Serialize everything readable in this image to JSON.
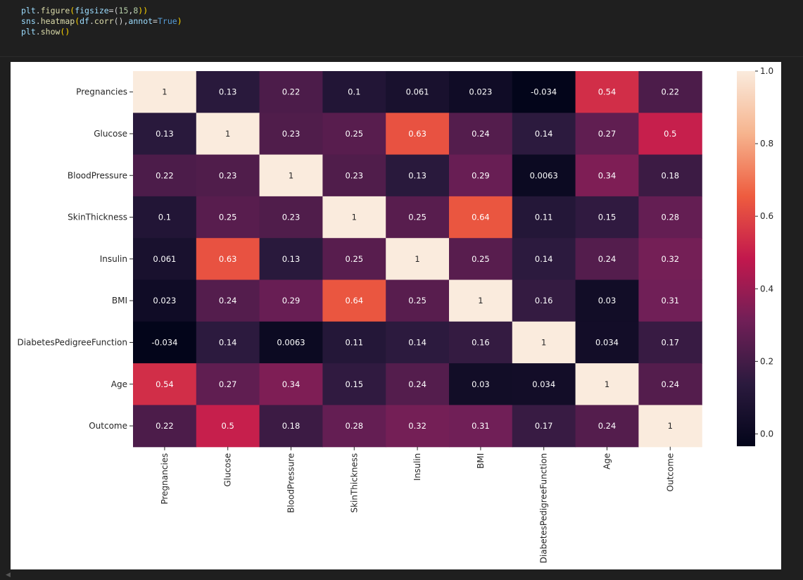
{
  "code": {
    "lines": [
      [
        {
          "t": "plt",
          "c": "tk-var"
        },
        {
          "t": ".",
          "c": "tk-p"
        },
        {
          "t": "figure",
          "c": "tk-fn"
        },
        {
          "t": "(",
          "c": "tk-y"
        },
        {
          "t": "figsize",
          "c": "tk-var"
        },
        {
          "t": "=(",
          "c": "tk-p"
        },
        {
          "t": "15",
          "c": "tk-num"
        },
        {
          "t": ",",
          "c": "tk-p"
        },
        {
          "t": "8",
          "c": "tk-num"
        },
        {
          "t": "))",
          "c": "tk-y"
        }
      ],
      [
        {
          "t": "sns",
          "c": "tk-var"
        },
        {
          "t": ".",
          "c": "tk-p"
        },
        {
          "t": "heatmap",
          "c": "tk-fn"
        },
        {
          "t": "(",
          "c": "tk-y"
        },
        {
          "t": "df",
          "c": "tk-var"
        },
        {
          "t": ".",
          "c": "tk-p"
        },
        {
          "t": "corr",
          "c": "tk-fn"
        },
        {
          "t": "()",
          "c": "tk-p"
        },
        {
          "t": ",",
          "c": "tk-p"
        },
        {
          "t": "annot",
          "c": "tk-var"
        },
        {
          "t": "=",
          "c": "tk-p"
        },
        {
          "t": "True",
          "c": "tk-kw"
        },
        {
          "t": ")",
          "c": "tk-y"
        }
      ],
      [
        {
          "t": "plt",
          "c": "tk-var"
        },
        {
          "t": ".",
          "c": "tk-p"
        },
        {
          "t": "show",
          "c": "tk-fn"
        },
        {
          "t": "()",
          "c": "tk-y"
        }
      ]
    ]
  },
  "chart_data": {
    "type": "heatmap",
    "title": "",
    "xlabel": "",
    "ylabel": "",
    "rows": [
      "Pregnancies",
      "Glucose",
      "BloodPressure",
      "SkinThickness",
      "Insulin",
      "BMI",
      "DiabetesPedigreeFunction",
      "Age",
      "Outcome"
    ],
    "cols": [
      "Pregnancies",
      "Glucose",
      "BloodPressure",
      "SkinThickness",
      "Insulin",
      "BMI",
      "DiabetesPedigreeFunction",
      "Age",
      "Outcome"
    ],
    "values": [
      [
        1,
        0.13,
        0.22,
        0.1,
        0.061,
        0.023,
        -0.034,
        0.54,
        0.22
      ],
      [
        0.13,
        1,
        0.23,
        0.25,
        0.63,
        0.24,
        0.14,
        0.27,
        0.5
      ],
      [
        0.22,
        0.23,
        1,
        0.23,
        0.13,
        0.29,
        0.0063,
        0.34,
        0.18
      ],
      [
        0.1,
        0.25,
        0.23,
        1,
        0.25,
        0.64,
        0.11,
        0.15,
        0.28
      ],
      [
        0.061,
        0.63,
        0.13,
        0.25,
        1,
        0.25,
        0.14,
        0.24,
        0.32
      ],
      [
        0.023,
        0.24,
        0.29,
        0.64,
        0.25,
        1,
        0.16,
        0.03,
        0.31
      ],
      [
        -0.034,
        0.14,
        0.0063,
        0.11,
        0.14,
        0.16,
        1,
        0.034,
        0.17
      ],
      [
        0.54,
        0.27,
        0.34,
        0.15,
        0.24,
        0.03,
        0.034,
        1,
        0.24
      ],
      [
        0.22,
        0.5,
        0.18,
        0.28,
        0.32,
        0.31,
        0.17,
        0.24,
        1
      ]
    ],
    "labels": [
      [
        "1",
        "0.13",
        "0.22",
        "0.1",
        "0.061",
        "0.023",
        "-0.034",
        "0.54",
        "0.22"
      ],
      [
        "0.13",
        "1",
        "0.23",
        "0.25",
        "0.63",
        "0.24",
        "0.14",
        "0.27",
        "0.5"
      ],
      [
        "0.22",
        "0.23",
        "1",
        "0.23",
        "0.13",
        "0.29",
        "0.0063",
        "0.34",
        "0.18"
      ],
      [
        "0.1",
        "0.25",
        "0.23",
        "1",
        "0.25",
        "0.64",
        "0.11",
        "0.15",
        "0.28"
      ],
      [
        "0.061",
        "0.63",
        "0.13",
        "0.25",
        "1",
        "0.25",
        "0.14",
        "0.24",
        "0.32"
      ],
      [
        "0.023",
        "0.24",
        "0.29",
        "0.64",
        "0.25",
        "1",
        "0.16",
        "0.03",
        "0.31"
      ],
      [
        "-0.034",
        "0.14",
        "0.0063",
        "0.11",
        "0.14",
        "0.16",
        "1",
        "0.034",
        "0.17"
      ],
      [
        "0.54",
        "0.27",
        "0.34",
        "0.15",
        "0.24",
        "0.03",
        "0.034",
        "1",
        "0.24"
      ],
      [
        "0.22",
        "0.5",
        "0.18",
        "0.28",
        "0.32",
        "0.31",
        "0.17",
        "0.24",
        "1"
      ]
    ],
    "colorbar": {
      "vmin": -0.034,
      "vmax": 1,
      "ticks": [
        0.0,
        0.2,
        0.4,
        0.6,
        0.8,
        1.0
      ],
      "tick_labels": [
        "0.0",
        "0.2",
        "0.4",
        "0.6",
        "0.8",
        "1.0"
      ],
      "colormap": "rocket",
      "stops": [
        "#03051a",
        "#2b1a3e",
        "#701f57",
        "#c2184d",
        "#ee5c3f",
        "#f6b48e",
        "#faebdd"
      ]
    },
    "grid": false,
    "legend": "colorbar-right"
  }
}
